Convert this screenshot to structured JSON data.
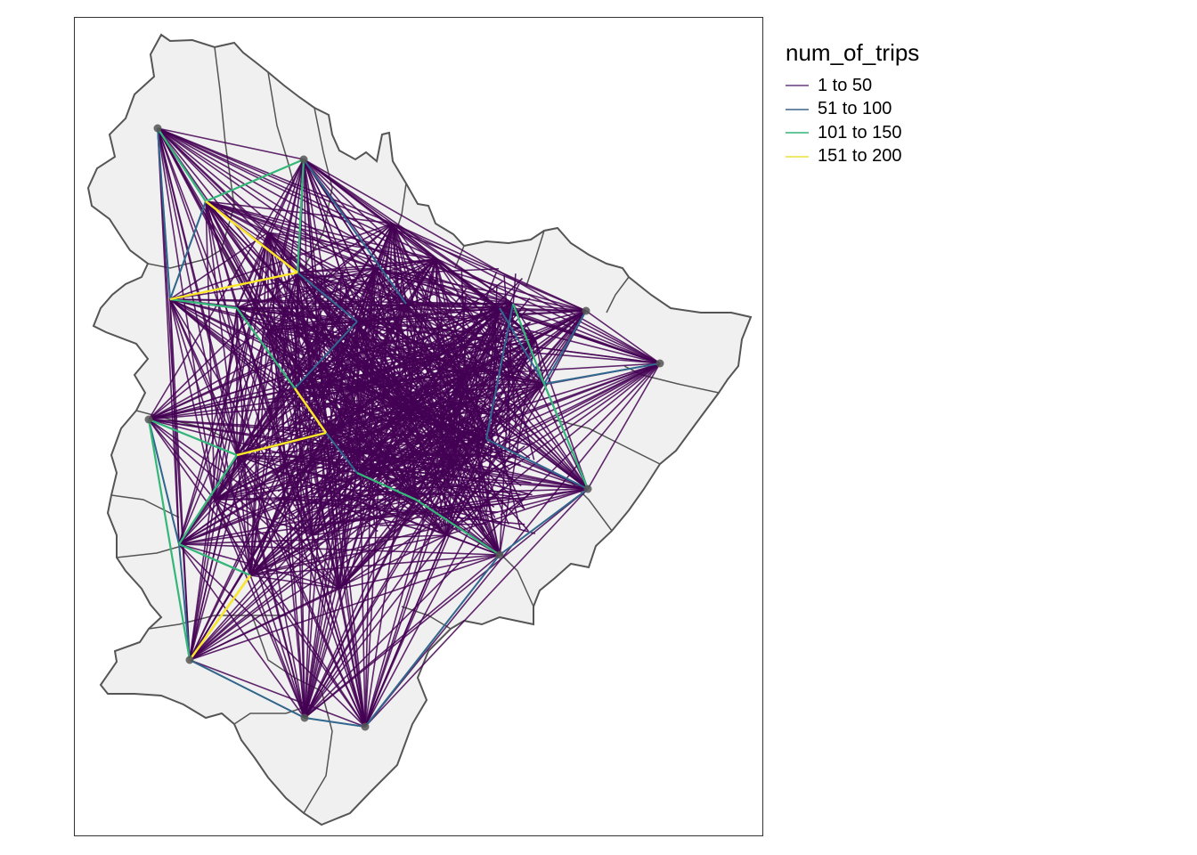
{
  "legend": {
    "title": "num_of_trips",
    "items": [
      {
        "label": "1 to 50",
        "color": "#8e6ba0"
      },
      {
        "label": "51 to 100",
        "color": "#6a8aa6"
      },
      {
        "label": "101 to 150",
        "color": "#66c79a"
      },
      {
        "label": "151 to 200",
        "color": "#f1e86b"
      }
    ]
  },
  "colors": {
    "flow_low": "#440154",
    "flow_mid": "#31688e",
    "flow_high": "#35b779",
    "flow_top": "#fde725",
    "land_fill": "#f0f0f0",
    "boundary": "#555555",
    "node": "#555555"
  },
  "icons": [
    "map-node-point",
    "legend-line-icon"
  ]
}
